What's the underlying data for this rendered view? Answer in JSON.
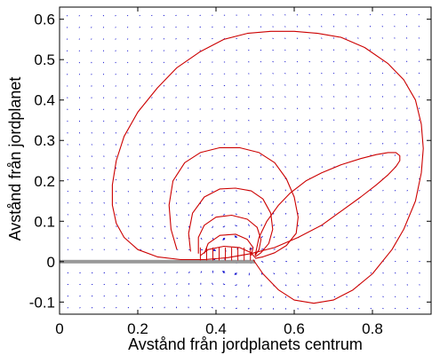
{
  "chart_data": {
    "type": "line",
    "title": "",
    "xlabel": "Avstånd från jordplanets centrum",
    "ylabel": "Avstånd från jordplanet",
    "xlim": [
      0,
      0.95
    ],
    "ylim": [
      -0.13,
      0.63
    ],
    "xticks": [
      0,
      0.2,
      0.4,
      0.6,
      0.8
    ],
    "xtick_labels": [
      "0",
      "0.2",
      "0.4",
      "0.6",
      "0.8"
    ],
    "yticks": [
      -0.1,
      0,
      0.1,
      0.2,
      0.3,
      0.4,
      0.5,
      0.6
    ],
    "ytick_labels": [
      "-0.1",
      "0",
      "0.1",
      "0.2",
      "0.3",
      "0.4",
      "0.5",
      "0.6"
    ],
    "grid": false,
    "colors": {
      "contours": "#cc0000",
      "vectors": "#0000cc",
      "ground_plane": "#999999",
      "axes": "#000000"
    },
    "ground_plane": {
      "x": [
        0,
        0.5
      ],
      "y": 0
    },
    "field_lines": [
      {
        "x": [
          0.495,
          0.52,
          0.56,
          0.6,
          0.65,
          0.7,
          0.75,
          0.8,
          0.85,
          0.88,
          0.91,
          0.925,
          0.93,
          0.925,
          0.91,
          0.88,
          0.84,
          0.78,
          0.72,
          0.66,
          0.6,
          0.54,
          0.48,
          0.42,
          0.36,
          0.3,
          0.25,
          0.2,
          0.165,
          0.145,
          0.135,
          0.135,
          0.145,
          0.165,
          0.2,
          0.25,
          0.31,
          0.37,
          0.43,
          0.49,
          0.55,
          0.61,
          0.67,
          0.72,
          0.77,
          0.81,
          0.84,
          0.86,
          0.87,
          0.87,
          0.86,
          0.84,
          0.81,
          0.77,
          0.72,
          0.67,
          0.63,
          0.59,
          0.56,
          0.53,
          0.51,
          0.5
        ],
        "y": [
          0.005,
          -0.03,
          -0.07,
          -0.095,
          -0.103,
          -0.095,
          -0.07,
          -0.03,
          0.03,
          0.08,
          0.15,
          0.22,
          0.28,
          0.34,
          0.4,
          0.45,
          0.49,
          0.53,
          0.555,
          0.565,
          0.57,
          0.57,
          0.565,
          0.55,
          0.52,
          0.48,
          0.43,
          0.37,
          0.31,
          0.25,
          0.19,
          0.14,
          0.095,
          0.06,
          0.03,
          0.012,
          0.005,
          0.005,
          0.01,
          0.02,
          0.035,
          0.06,
          0.09,
          0.125,
          0.16,
          0.19,
          0.215,
          0.235,
          0.25,
          0.262,
          0.27,
          0.27,
          0.265,
          0.255,
          0.24,
          0.22,
          0.2,
          0.17,
          0.14,
          0.1,
          0.06,
          0.015
        ]
      },
      {
        "x": [
          0.3,
          0.285,
          0.28,
          0.29,
          0.32,
          0.36,
          0.41,
          0.46,
          0.51,
          0.55,
          0.58,
          0.6,
          0.61,
          0.605,
          0.58,
          0.55,
          0.52,
          0.5
        ],
        "y": [
          0.03,
          0.08,
          0.14,
          0.2,
          0.245,
          0.27,
          0.282,
          0.282,
          0.27,
          0.245,
          0.205,
          0.16,
          0.11,
          0.07,
          0.04,
          0.022,
          0.012,
          0.008
        ]
      },
      {
        "x": [
          0.335,
          0.33,
          0.34,
          0.37,
          0.41,
          0.45,
          0.49,
          0.52,
          0.54,
          0.545,
          0.535,
          0.515,
          0.5
        ],
        "y": [
          0.025,
          0.07,
          0.12,
          0.16,
          0.18,
          0.182,
          0.175,
          0.155,
          0.12,
          0.08,
          0.045,
          0.022,
          0.012
        ]
      },
      {
        "x": [
          0.355,
          0.355,
          0.37,
          0.4,
          0.44,
          0.48,
          0.505,
          0.515,
          0.51,
          0.5
        ],
        "y": [
          0.02,
          0.06,
          0.09,
          0.11,
          0.115,
          0.105,
          0.085,
          0.055,
          0.03,
          0.015
        ]
      },
      {
        "x": [
          0.37,
          0.38,
          0.41,
          0.45,
          0.48,
          0.495,
          0.49
        ],
        "y": [
          0.02,
          0.045,
          0.065,
          0.068,
          0.055,
          0.035,
          0.015
        ]
      },
      {
        "x": [
          0.36,
          0.38,
          0.42,
          0.46,
          0.49,
          0.5
        ],
        "y": [
          0.015,
          0.03,
          0.038,
          0.035,
          0.022,
          0.01
        ]
      }
    ]
  }
}
